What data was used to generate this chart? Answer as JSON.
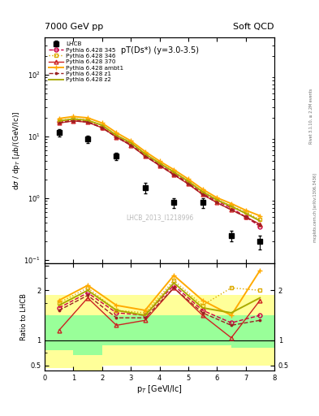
{
  "title_left": "7000 GeV pp",
  "title_right": "Soft QCD",
  "annotation": "pT(Ds*) (y=3.0-3.5)",
  "watermark": "LHCB_2013_I1218996",
  "right_label_top": "Rivet 3.1.10, ≥ 2.2M events",
  "right_label_bottom": "mcplots.cern.ch [arXiv:1306.3436]",
  "lhcb_x": [
    0.5,
    1.5,
    2.5,
    3.5,
    4.5,
    5.5,
    6.5,
    7.5
  ],
  "lhcb_y": [
    11.5,
    9.0,
    4.8,
    1.5,
    0.85,
    0.85,
    0.25,
    0.2
  ],
  "lhcb_yerr_lo": [
    1.5,
    1.2,
    0.7,
    0.3,
    0.15,
    0.15,
    0.05,
    0.05
  ],
  "lhcb_yerr_hi": [
    1.5,
    1.2,
    0.7,
    0.3,
    0.15,
    0.15,
    0.05,
    0.05
  ],
  "mc_x": [
    0.5,
    1.0,
    1.5,
    2.0,
    2.5,
    3.0,
    3.5,
    4.0,
    4.5,
    5.0,
    5.5,
    6.0,
    6.5,
    7.0,
    7.5
  ],
  "py345_y": [
    17.0,
    18.5,
    17.5,
    14.0,
    10.0,
    7.5,
    5.0,
    3.5,
    2.5,
    1.8,
    1.2,
    0.9,
    0.7,
    0.5,
    0.35
  ],
  "py346_y": [
    18.0,
    19.5,
    18.5,
    15.0,
    10.5,
    8.0,
    5.2,
    3.7,
    2.7,
    1.9,
    1.3,
    0.95,
    0.75,
    0.6,
    0.45
  ],
  "py370_y": [
    16.5,
    17.8,
    17.0,
    13.8,
    9.8,
    7.2,
    4.8,
    3.4,
    2.4,
    1.7,
    1.15,
    0.85,
    0.65,
    0.5,
    0.38
  ],
  "pyambt1_y": [
    19.5,
    21.0,
    20.0,
    16.5,
    11.5,
    8.5,
    5.7,
    4.0,
    2.9,
    2.05,
    1.4,
    1.02,
    0.82,
    0.64,
    0.52
  ],
  "pyz1_y": [
    16.5,
    18.0,
    17.0,
    13.8,
    9.7,
    7.2,
    4.8,
    3.4,
    2.4,
    1.72,
    1.15,
    0.85,
    0.65,
    0.5,
    0.37
  ],
  "pyz2_y": [
    17.8,
    19.2,
    18.2,
    15.2,
    10.4,
    7.9,
    5.2,
    3.7,
    2.65,
    1.88,
    1.27,
    0.94,
    0.74,
    0.57,
    0.43
  ],
  "ratio_x": [
    0.5,
    1.5,
    2.5,
    3.5,
    4.5,
    5.5,
    6.5,
    7.5
  ],
  "r345": [
    1.65,
    1.95,
    1.55,
    1.5,
    2.1,
    1.6,
    1.35,
    1.5
  ],
  "r346": [
    1.75,
    2.05,
    1.6,
    1.55,
    2.2,
    1.7,
    2.05,
    2.0
  ],
  "r370": [
    1.2,
    1.85,
    1.3,
    1.4,
    2.05,
    1.5,
    1.05,
    1.8
  ],
  "rambt1": [
    1.8,
    2.1,
    1.7,
    1.6,
    2.3,
    1.8,
    1.5,
    2.4
  ],
  "rz1": [
    1.6,
    1.9,
    1.45,
    1.45,
    2.05,
    1.55,
    1.3,
    1.4
  ],
  "rz2": [
    1.7,
    2.0,
    1.6,
    1.5,
    2.15,
    1.65,
    1.55,
    1.85
  ],
  "band_x_edges": [
    0.0,
    1.0,
    2.0,
    3.0,
    5.0,
    6.5,
    8.0
  ],
  "band_green_lo": [
    0.8,
    0.7,
    0.9,
    0.9,
    0.9,
    0.85,
    0.85
  ],
  "band_green_hi": [
    1.5,
    1.5,
    1.5,
    1.5,
    1.5,
    1.5,
    1.5
  ],
  "band_yellow_lo": [
    0.45,
    0.35,
    0.5,
    0.5,
    0.5,
    0.5,
    0.5
  ],
  "band_yellow_hi": [
    1.9,
    1.9,
    1.9,
    1.9,
    1.9,
    1.9,
    2.0
  ],
  "colors": {
    "lhcb": "#000000",
    "py345": "#cc0044",
    "py346": "#ddaa00",
    "py370": "#cc2222",
    "pyambt1": "#ffaa00",
    "pyz1": "#992222",
    "pyz2": "#aaaa00"
  },
  "ylim_main": [
    0.09,
    400
  ],
  "ylim_ratio": [
    0.4,
    2.55
  ],
  "xlim": [
    0,
    8
  ]
}
